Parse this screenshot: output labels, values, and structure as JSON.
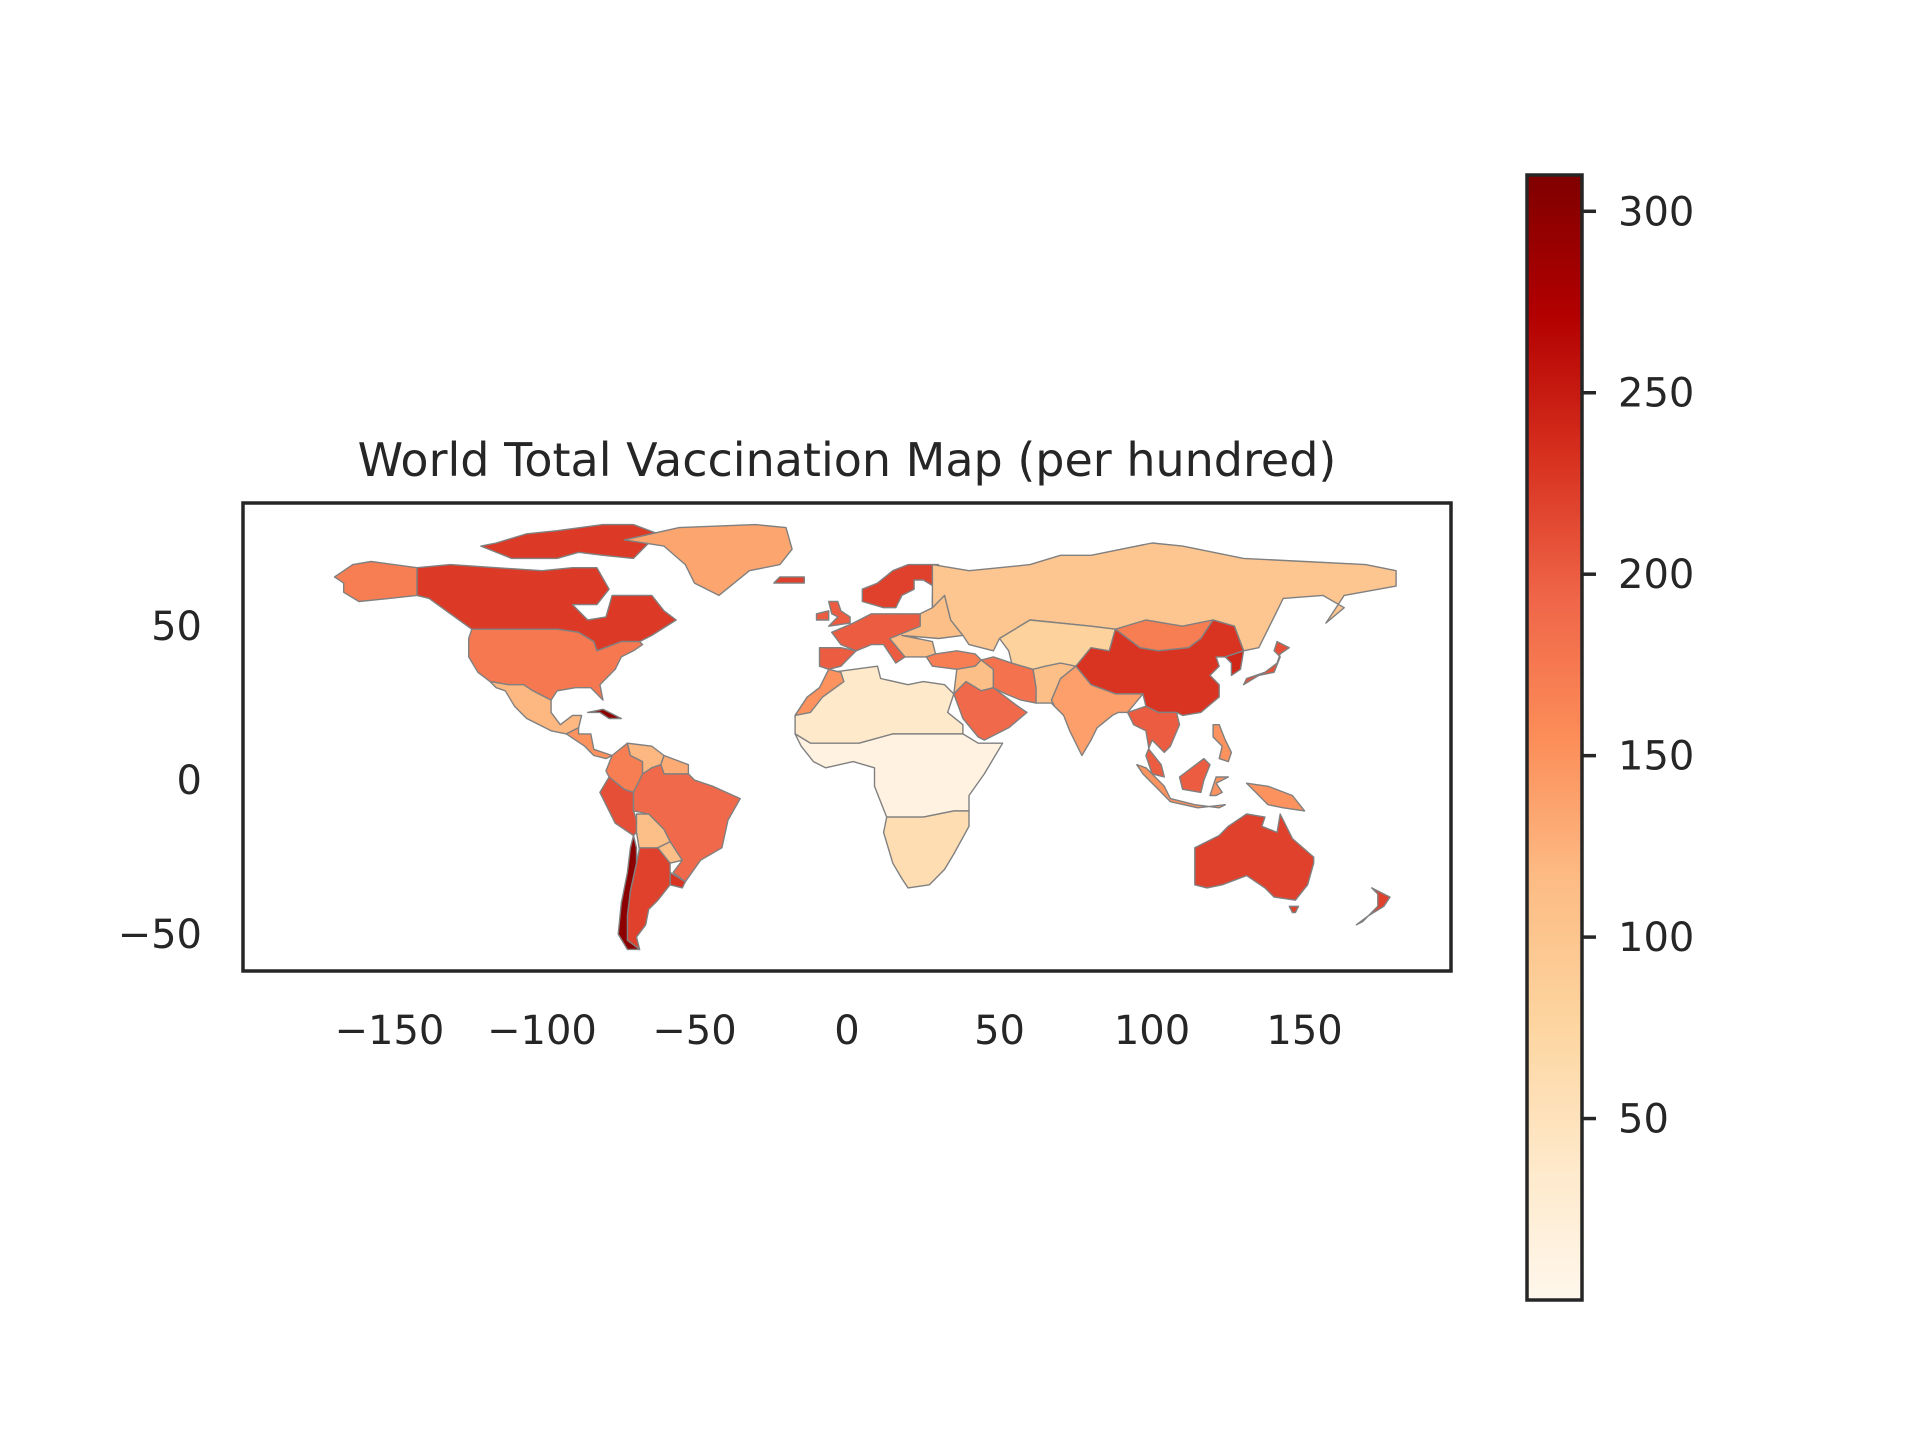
{
  "chart_data": {
    "type": "choropleth",
    "title": "World Total Vaccination Map (per hundred)",
    "xlim": [
      -198,
      198
    ],
    "ylim": [
      -62,
      90
    ],
    "xticks": [
      -150,
      -100,
      -50,
      0,
      50,
      100,
      150
    ],
    "xtick_labels": [
      "−150",
      "−100",
      "−50",
      "0",
      "50",
      "100",
      "150"
    ],
    "yticks": [
      50,
      0,
      -50
    ],
    "ytick_labels": [
      "50",
      "0",
      "−50"
    ],
    "colormap": "OrRd",
    "colorbar": {
      "range": [
        0,
        310
      ],
      "ticks": [
        50,
        100,
        150,
        200,
        250,
        300
      ],
      "tick_labels": [
        "50",
        "100",
        "150",
        "200",
        "250",
        "300"
      ],
      "stops": [
        "#fff7ec",
        "#fee8c8",
        "#fdd49e",
        "#fdbb84",
        "#fc8d59",
        "#ef6548",
        "#d7301f",
        "#b30000",
        "#7f0000"
      ]
    },
    "regions": [
      {
        "name": "Canada",
        "value": 225
      },
      {
        "name": "Greenland",
        "value": 135
      },
      {
        "name": "Alaska",
        "value": 170
      },
      {
        "name": "United States",
        "value": 175
      },
      {
        "name": "Mexico",
        "value": 120
      },
      {
        "name": "Central America",
        "value": 150
      },
      {
        "name": "Cuba",
        "value": 300
      },
      {
        "name": "Colombia",
        "value": 170
      },
      {
        "name": "Venezuela",
        "value": 120
      },
      {
        "name": "Guianas",
        "value": 130
      },
      {
        "name": "Peru",
        "value": 210
      },
      {
        "name": "Brazil",
        "value": 190
      },
      {
        "name": "Bolivia",
        "value": 110
      },
      {
        "name": "Paraguay",
        "value": 110
      },
      {
        "name": "Uruguay",
        "value": 230
      },
      {
        "name": "Argentina",
        "value": 220
      },
      {
        "name": "Chile",
        "value": 300
      },
      {
        "name": "North Africa",
        "value": 35
      },
      {
        "name": "Central Africa",
        "value": 12
      },
      {
        "name": "East Africa",
        "value": 25
      },
      {
        "name": "Southern Africa",
        "value": 60
      },
      {
        "name": "Morocco",
        "value": 150
      },
      {
        "name": "Spain",
        "value": 200
      },
      {
        "name": "Western Europe",
        "value": 200
      },
      {
        "name": "Scandinavia",
        "value": 220
      },
      {
        "name": "Eastern Europe",
        "value": 110
      },
      {
        "name": "Russia",
        "value": 100
      },
      {
        "name": "Turkey",
        "value": 170
      },
      {
        "name": "Middle East",
        "value": 110
      },
      {
        "name": "Saudi Arabia",
        "value": 190
      },
      {
        "name": "Iran",
        "value": 180
      },
      {
        "name": "Central Asia",
        "value": 80
      },
      {
        "name": "Mongolia",
        "value": 170
      },
      {
        "name": "China",
        "value": 230
      },
      {
        "name": "India",
        "value": 140
      },
      {
        "name": "Southeast Asia",
        "value": 200
      },
      {
        "name": "Indonesia",
        "value": 150
      },
      {
        "name": "Japan",
        "value": 210
      },
      {
        "name": "Korea",
        "value": 240
      },
      {
        "name": "Australia",
        "value": 220
      },
      {
        "name": "New Zealand",
        "value": 220
      }
    ]
  }
}
